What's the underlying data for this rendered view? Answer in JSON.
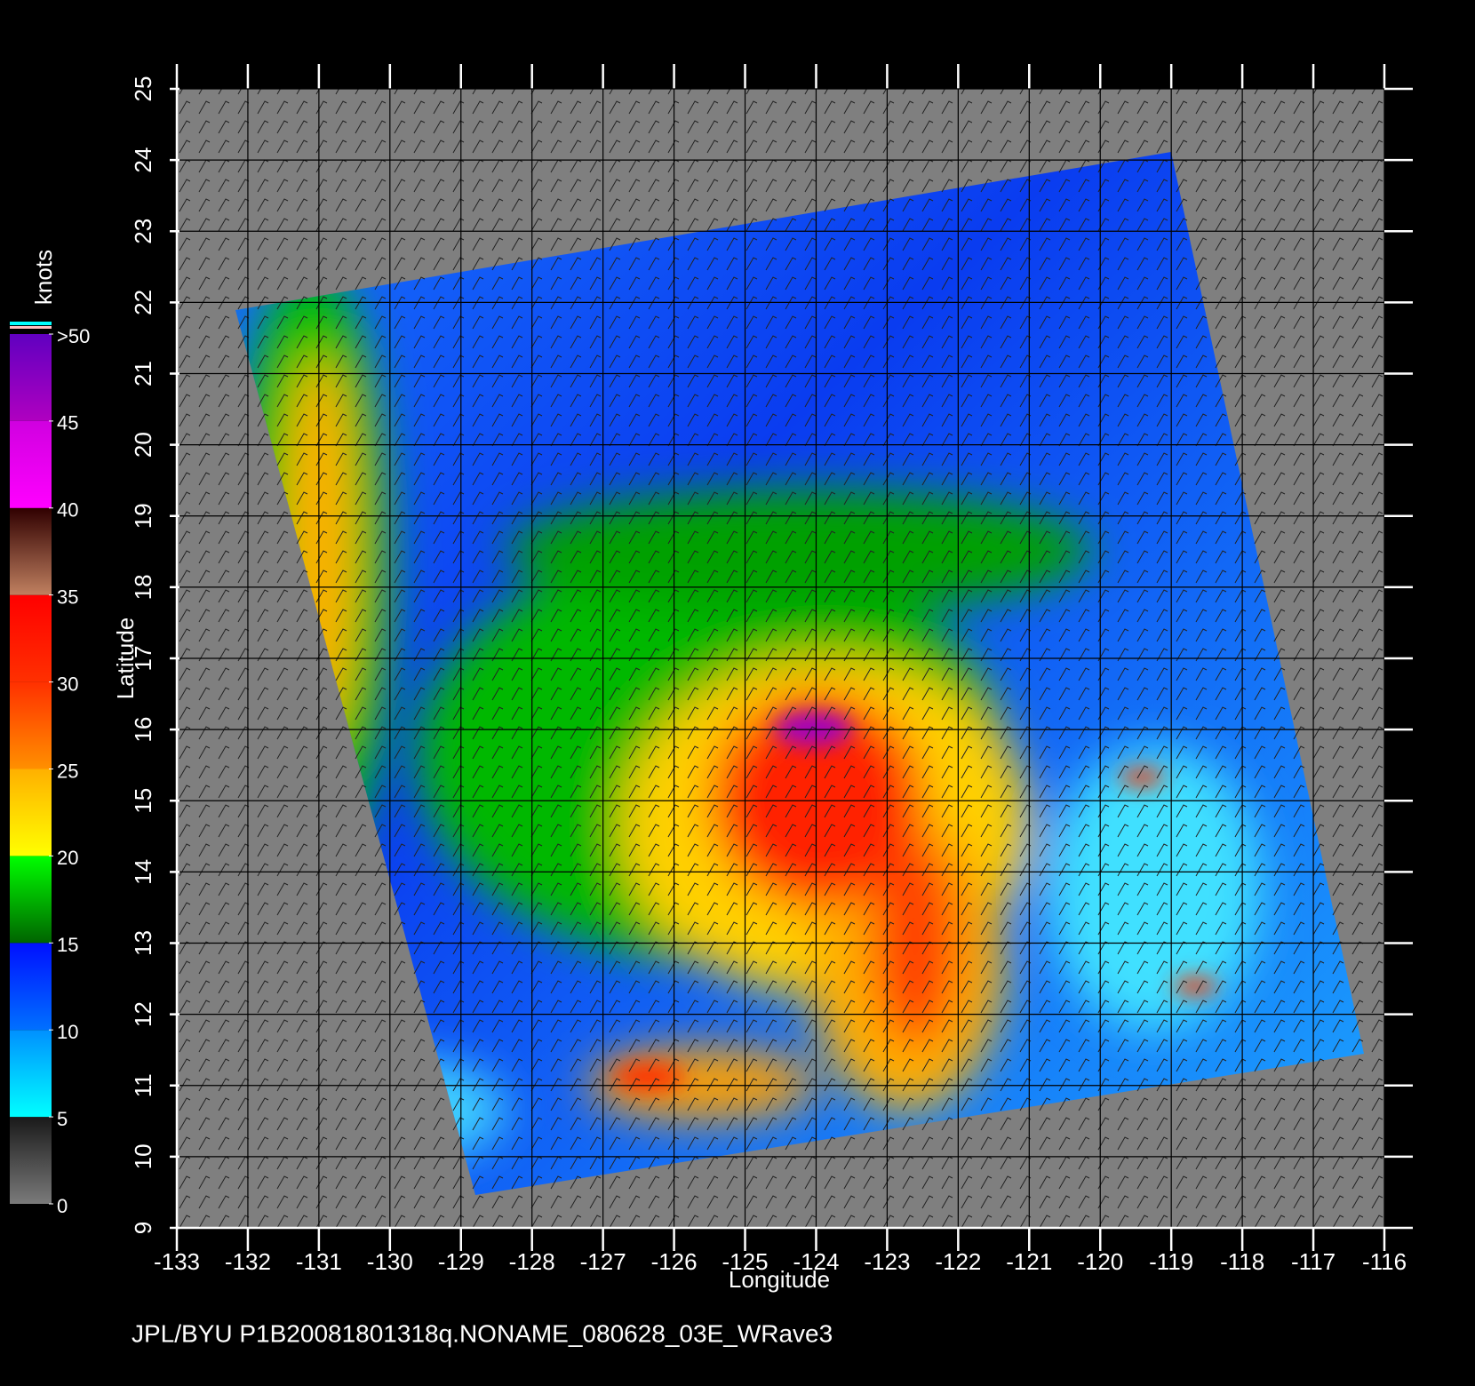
{
  "chart_data": {
    "type": "map",
    "x_label": "Longitude",
    "y_label": "Latitude",
    "xlim": [
      -133,
      -116
    ],
    "ylim": [
      9,
      25
    ],
    "xticks": [
      -133,
      -132,
      -131,
      -130,
      -129,
      -128,
      -127,
      -126,
      -125,
      -124,
      -123,
      -122,
      -121,
      -120,
      -119,
      -118,
      -117,
      -116
    ],
    "yticks": [
      9,
      10,
      11,
      12,
      13,
      14,
      15,
      16,
      17,
      18,
      19,
      20,
      21,
      22,
      23,
      24,
      25
    ],
    "grid": true,
    "colorbar": {
      "title": "knots",
      "lim": [
        0,
        50
      ],
      "ticks": [
        0,
        5,
        10,
        15,
        20,
        25,
        30,
        35,
        40,
        {
          "value": 45,
          "label": "45"
        },
        {
          "value": 50,
          "label": ">50"
        }
      ],
      "colors": [
        [
          "#7a7a7a",
          "#1a1a1a"
        ],
        [
          "#00ffff",
          "#0090ff"
        ],
        [
          "#0070ff",
          "#0010ff"
        ],
        [
          "#006400",
          "#00ff00"
        ],
        [
          "#ffff00",
          "#ffb000"
        ],
        [
          "#ff9000",
          "#ff3000"
        ],
        [
          "#ff3000",
          "#ff0000"
        ],
        [
          "#c08060",
          "#300000"
        ],
        [
          "#ff00ff",
          "#d000e0"
        ],
        [
          "#b000c0",
          "#6000c0"
        ]
      ]
    },
    "footer": "JPL/BYU  P1B20081801318q.NONAME_080628_03E_WRave3"
  }
}
